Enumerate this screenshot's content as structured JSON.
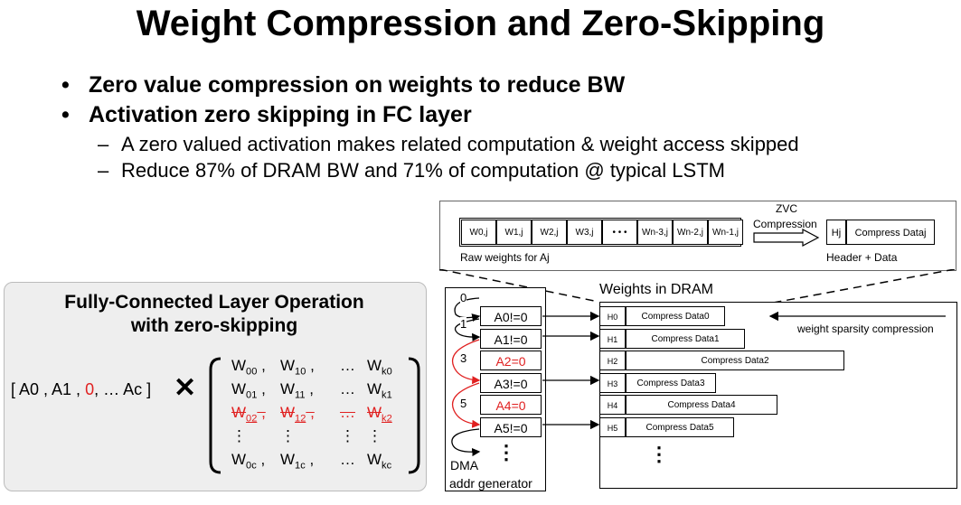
{
  "title": "Weight Compression and Zero-Skipping",
  "bullets": [
    {
      "text": "Zero value compression on weights to reduce BW"
    },
    {
      "text": "Activation zero skipping in FC layer"
    }
  ],
  "sub_bullets": [
    {
      "text": "A zero valued activation makes related computation & weight access skipped"
    },
    {
      "text": "Reduce 87% of DRAM BW and 71% of computation @ typical LSTM"
    }
  ],
  "bullet_symbol": "•",
  "dash_symbol": "–",
  "fc_panel": {
    "title_line1": "Fully-Connected Layer Operation",
    "title_line2": "with zero-skipping",
    "vector": {
      "open": "[ A0 , A1 ,",
      "zero": "0",
      "close": ", … Ac ]"
    },
    "times": "✕",
    "rows": [
      [
        "W00 ,",
        "W10 ,",
        "…",
        "Wk0"
      ],
      [
        "W01 ,",
        "W11 ,",
        "…",
        "Wk1"
      ],
      [
        "W02 ,",
        "W12 ,",
        "…",
        "Wk2"
      ],
      [
        "⋮",
        "⋮",
        "⋮",
        "⋮"
      ],
      [
        "W0c ,",
        "W1c ,",
        "…",
        "Wkc"
      ]
    ]
  },
  "zvc": {
    "raw_cells": [
      "W0,j",
      "W1,j",
      "W2,j",
      "W3,j",
      "• • •",
      "Wn-3,j",
      "Wn-2,j",
      "Wn-1,j"
    ],
    "raw_label": "Raw weights for Aj",
    "arrow_label_1": "ZVC",
    "arrow_label_2": "Compression",
    "header_cell": "Hj",
    "data_cell": "Compress Dataj",
    "header_data_label": "Header + Data"
  },
  "dram": {
    "title": "Weights in DRAM",
    "rows": [
      {
        "h": "H0",
        "data": "Compress Data0"
      },
      {
        "h": "H1",
        "data": "Compress Data1"
      },
      {
        "h": "H2",
        "data": "Compress Data2"
      },
      {
        "h": "H3",
        "data": "Compress Data3"
      },
      {
        "h": "H4",
        "data": "Compress Data4"
      },
      {
        "h": "H5",
        "data": "Compress Data5"
      }
    ],
    "sparsity_label": "weight sparsity compression",
    "dots": "⋮"
  },
  "dma": {
    "activations": [
      {
        "text": "A0!=0",
        "zero": false
      },
      {
        "text": "A1!=0",
        "zero": false
      },
      {
        "text": "A2=0",
        "zero": true
      },
      {
        "text": "A3!=0",
        "zero": false
      },
      {
        "text": "A4=0",
        "zero": true
      },
      {
        "text": "A5!=0",
        "zero": false
      }
    ],
    "steps": [
      "0",
      "1",
      "3",
      "5"
    ],
    "dots": "⋮",
    "label_1": "DMA",
    "label_2": "addr generator"
  },
  "colors": {
    "zero": "#e02020",
    "panel_bg": "#eeeeee"
  }
}
